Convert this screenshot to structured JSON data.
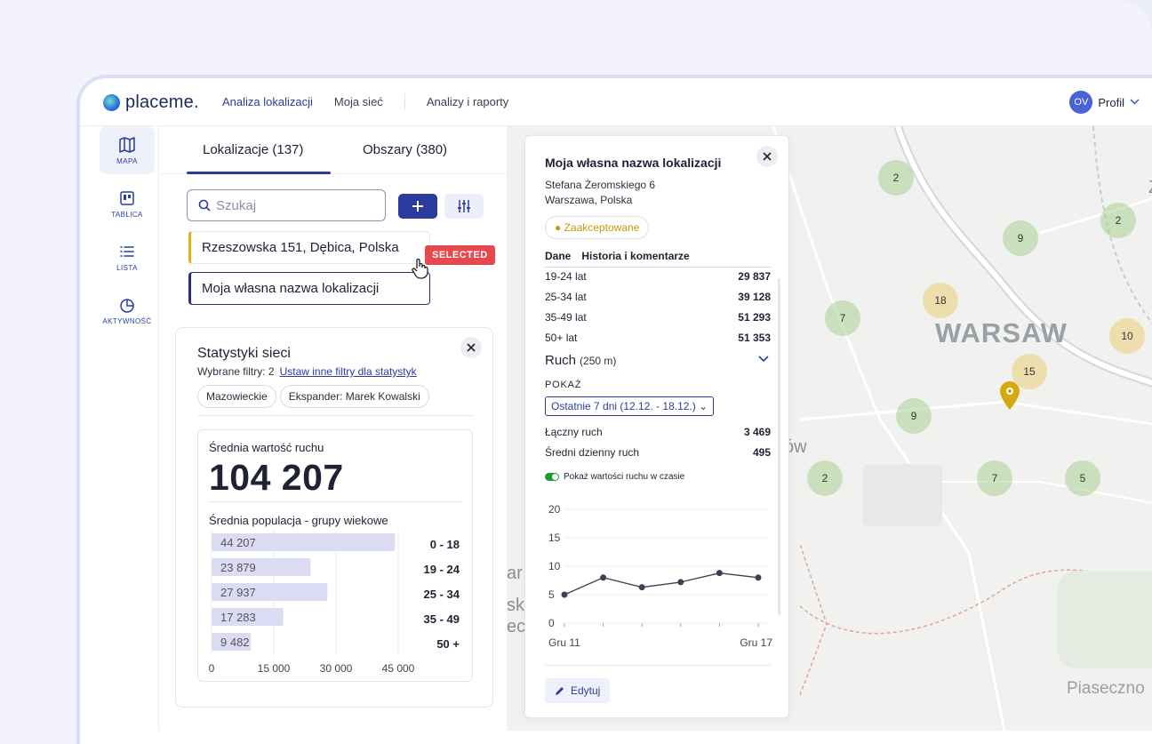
{
  "app": {
    "logo_text": "placeme.",
    "nav": [
      "Analiza lokalizacji",
      "Moja sieć",
      "Analizy i raporty"
    ],
    "profile_initials": "OV",
    "profile_label": "Profil"
  },
  "rail": [
    {
      "label": "MAPA",
      "icon": "map-icon"
    },
    {
      "label": "TABLICA",
      "icon": "board-icon"
    },
    {
      "label": "LISTA",
      "icon": "list-icon"
    },
    {
      "label": "AKTYWNOŚĆ",
      "icon": "activity-icon"
    }
  ],
  "tabs": {
    "locations": "Lokalizacje (137)",
    "areas": "Obszary (380)"
  },
  "search": {
    "placeholder": "Szukaj"
  },
  "locations": [
    {
      "name": "Rzeszowska 151, Dębica, Polska"
    },
    {
      "name": "Moja własna nazwa lokalizacji"
    }
  ],
  "selected_badge": "SELECTED",
  "stats": {
    "title": "Statystyki sieci",
    "filters_text": "Wybrane filtry: 2",
    "filters_link": "Ustaw inne filtry dla statystyk",
    "chips": [
      "Mazowieckie",
      "Ekspander: Marek Kowalski"
    ],
    "avg_traffic_label": "Średnia wartość ruchu",
    "avg_traffic_value": "104 207",
    "population_label": "Średnia populacja - grupy wiekowe"
  },
  "chart_data": {
    "type": "bar",
    "orientation": "horizontal",
    "categories": [
      "0 - 18",
      "19 - 24",
      "25 - 34",
      "35 - 49",
      "50 +"
    ],
    "values": [
      44207,
      23879,
      27937,
      17283,
      9482
    ],
    "value_labels": [
      "44 207",
      "23 879",
      "27 937",
      "17 283",
      "9 482"
    ],
    "xticks": [
      "0",
      "15 000",
      "30 000",
      "45 000"
    ],
    "xlim": [
      0,
      45000
    ],
    "color": "#dcdbf4"
  },
  "detail": {
    "title": "Moja własna nazwa lokalizacji",
    "address1": "Stefana Żeromskiego 6",
    "address2": "Warszawa, Polska",
    "status": "Zaakceptowane",
    "tabs": [
      "Dane",
      "Historia i komentarze"
    ],
    "age_rows": [
      {
        "label": "19-24 lat",
        "value": "29 837"
      },
      {
        "label": "25-34 lat",
        "value": "39 128"
      },
      {
        "label": "35-49 lat",
        "value": "51 293"
      },
      {
        "label": "50+ lat",
        "value": "51 353"
      }
    ],
    "ruch_title": "Ruch",
    "ruch_radius": "(250 m)",
    "show_label": "POKAŻ",
    "period": "Ostatnie 7 dni (12.12. - 18.12.)",
    "traffic_rows": [
      {
        "label": "Łączny ruch",
        "value": "3 469"
      },
      {
        "label": "Średni dzienny ruch",
        "value": "495"
      }
    ],
    "toggle_label": "Pokaż wartości ruchu w czasie",
    "edit_label": "Edytuj"
  },
  "line_chart": {
    "type": "line",
    "y": [
      5,
      8,
      6.3,
      7.2,
      8.8,
      8
    ],
    "yticks": [
      "20",
      "15",
      "10",
      "5",
      "0"
    ],
    "ylim": [
      0,
      20
    ],
    "xticks": [
      "Gru 11",
      "Gru 17"
    ]
  },
  "map": {
    "labels": [
      "WARSAW",
      "Piaseczno",
      "Zą",
      "ów",
      "ar",
      "sk",
      "ec"
    ],
    "clusters": [
      "2",
      "2",
      "9",
      "18",
      "7",
      "10",
      "15",
      "9",
      "2",
      "7",
      "5"
    ]
  }
}
